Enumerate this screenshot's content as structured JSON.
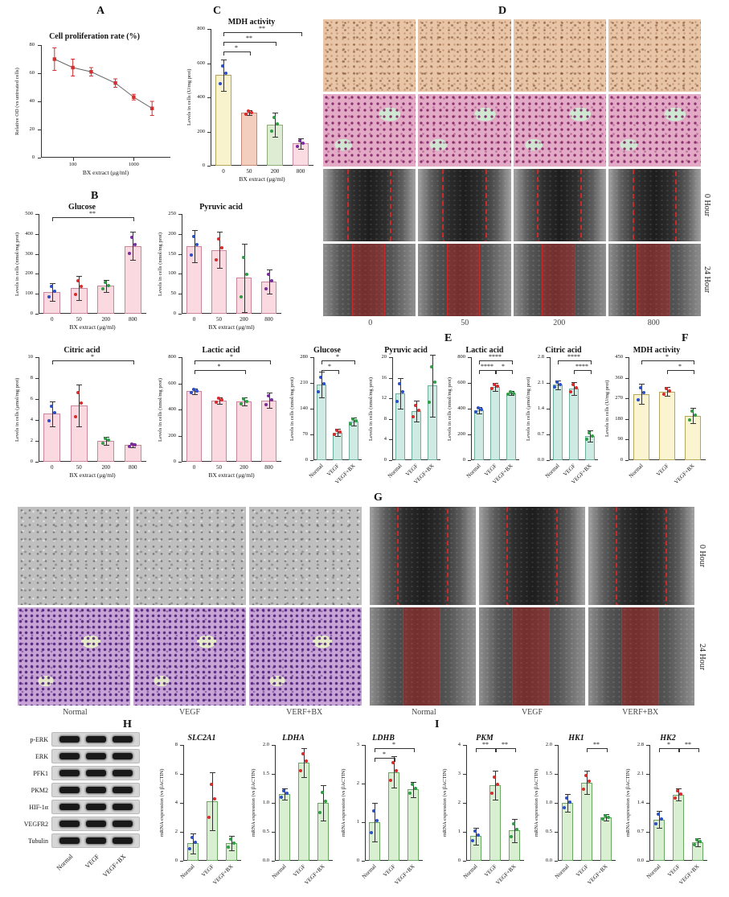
{
  "panels": {
    "A": "A",
    "B": "B",
    "C": "C",
    "D": "D",
    "E": "E",
    "F": "F",
    "G": "G",
    "H": "H",
    "I": "I"
  },
  "panelD": {
    "col_labels": [
      "0",
      "50",
      "200",
      "800"
    ],
    "row_labels": [
      "0 Hour",
      "24 Hour"
    ]
  },
  "panelG": {
    "col_labels": [
      "Normal",
      "VEGF",
      "VERF+BX"
    ],
    "row_labels": [
      "0 Hour",
      "24 Hour"
    ]
  },
  "western": {
    "proteins": [
      "p-ERK",
      "ERK",
      "PFK1",
      "PKM2",
      "HIF-1α",
      "VEGFR2",
      "Tubulin"
    ],
    "lanes": [
      "Normal",
      "VEGF",
      "VEGF+BX"
    ]
  },
  "chart_data": [
    {
      "id": "A_proliferation",
      "type": "line",
      "title": "Cell proliferation rate (%)",
      "ylabel": "Relative OD (vs untreated cells)",
      "xlabel": "BX extract (μg/ml)",
      "x": [
        50,
        100,
        200,
        500,
        1000,
        2000
      ],
      "y": [
        70,
        64,
        61,
        53,
        43,
        35
      ],
      "errors": [
        8,
        6,
        3,
        3,
        2,
        5
      ],
      "yticks": [
        0,
        20,
        40,
        60,
        80
      ],
      "xtick_labels": [
        "100",
        "1000"
      ],
      "xrange": [
        30,
        4000
      ],
      "point_color": "#d42f2f",
      "line_color": "#666"
    },
    {
      "id": "C_mdh",
      "type": "bar",
      "title": "MDH activity",
      "ylabel": "Levels in cells (U/mg prot)",
      "xlabel": "BX extract (μg/ml)",
      "categories": [
        "0",
        "50",
        "200",
        "800"
      ],
      "values": [
        530,
        310,
        240,
        130
      ],
      "errors": [
        90,
        15,
        70,
        30
      ],
      "yticks": [
        0,
        200,
        400,
        600,
        800
      ],
      "rotate_labels": false,
      "bar": [
        "#f8f2cd",
        "#f3cdbd",
        "#dfecd4",
        "#fbdce3"
      ],
      "bar_border": [
        "#b3a35a",
        "#c08a76",
        "#8fae77",
        "#c98ba0"
      ],
      "dots": [
        "#2a4fc9",
        "#d92b2b",
        "#2e9e44",
        "#7a2ba0"
      ],
      "sig": [
        {
          "a": 0,
          "b": 3,
          "label": "**",
          "row": 0
        },
        {
          "a": 0,
          "b": 2,
          "label": "**",
          "row": 1
        },
        {
          "a": 0,
          "b": 1,
          "label": "*",
          "row": 2
        }
      ]
    },
    {
      "id": "B_glucose",
      "type": "bar",
      "title": "Glucose",
      "ylabel": "Levels in cells (nmol/mg prot)",
      "xlabel": "BX extract (μg/ml)",
      "categories": [
        "0",
        "50",
        "200",
        "800"
      ],
      "values": [
        110,
        130,
        140,
        340
      ],
      "errors": [
        45,
        60,
        30,
        70
      ],
      "yticks": [
        0,
        100,
        200,
        300,
        400,
        500
      ],
      "rotate_labels": false,
      "bar": "#fbd9e0",
      "bar_border": "#c9859a",
      "dots": [
        "#2a4fc9",
        "#d92b2b",
        "#2e9e44",
        "#7a2ba0"
      ],
      "sig": [
        {
          "a": 0,
          "b": 3,
          "label": "**",
          "row": 0
        }
      ]
    },
    {
      "id": "B_pyruvic",
      "type": "bar",
      "title": "Pyruvic acid",
      "ylabel": "Levels in cells (nmol/mg prot)",
      "xlabel": "BX extract (μg/ml)",
      "categories": [
        "0",
        "50",
        "200",
        "800"
      ],
      "values": [
        170,
        160,
        90,
        80
      ],
      "errors": [
        40,
        45,
        85,
        30
      ],
      "yticks": [
        0,
        50,
        100,
        150,
        200,
        250
      ],
      "rotate_labels": false,
      "bar": "#fbd9e0",
      "bar_border": "#c9859a",
      "dots": [
        "#2a4fc9",
        "#d92b2b",
        "#2e9e44",
        "#7a2ba0"
      ],
      "sig": []
    },
    {
      "id": "B_citric",
      "type": "bar",
      "title": "Citric acid",
      "ylabel": "Levels in cells (μmol/mg prot)",
      "xlabel": "BX extract (μg/ml)",
      "categories": [
        "0",
        "50",
        "200",
        "800"
      ],
      "values": [
        4.6,
        5.4,
        2.0,
        1.6
      ],
      "errors": [
        1.2,
        2.0,
        0.4,
        0.2
      ],
      "yticks": [
        0,
        2,
        4,
        6,
        8,
        10
      ],
      "rotate_labels": false,
      "bar": "#fbd9e0",
      "bar_border": "#c9859a",
      "dots": [
        "#2a4fc9",
        "#d92b2b",
        "#2e9e44",
        "#7a2ba0"
      ],
      "sig": [
        {
          "a": 0,
          "b": 3,
          "label": "*",
          "row": 0
        }
      ]
    },
    {
      "id": "B_lactic",
      "type": "bar",
      "title": "Lactic acid",
      "ylabel": "Levels in cells (nmol/mg prot)",
      "xlabel": "BX extract (μg/ml)",
      "categories": [
        "0",
        "50",
        "200",
        "800"
      ],
      "values": [
        540,
        470,
        460,
        470
      ],
      "errors": [
        20,
        25,
        30,
        60
      ],
      "yticks": [
        0,
        200,
        400,
        600,
        800
      ],
      "rotate_labels": false,
      "bar": "#fbd9e0",
      "bar_border": "#c9859a",
      "dots": [
        "#2a4fc9",
        "#d92b2b",
        "#2e9e44",
        "#7a2ba0"
      ],
      "sig": [
        {
          "a": 0,
          "b": 3,
          "label": "*",
          "row": 0
        },
        {
          "a": 0,
          "b": 2,
          "label": "*",
          "row": 1
        }
      ]
    },
    {
      "id": "E_glucose",
      "type": "bar",
      "title": "Glucose",
      "ylabel": "Levels in cells (nmol/mg prot)",
      "categories": [
        "Normal",
        "VEGF",
        "VEGF+BX"
      ],
      "values": [
        205,
        75,
        105
      ],
      "errors": [
        35,
        10,
        12
      ],
      "yticks": [
        0,
        70,
        140,
        210,
        280
      ],
      "rotate_labels": true,
      "bar": "#cfeae2",
      "bar_border": "#6fae9c",
      "dots": [
        "#2a4fc9",
        "#d92b2b",
        "#2e9e44"
      ],
      "sig": [
        {
          "a": 0,
          "b": 2,
          "label": "*",
          "row": 0
        },
        {
          "a": 0,
          "b": 1,
          "label": "*",
          "row": 1
        }
      ]
    },
    {
      "id": "E_pyruvic",
      "type": "bar",
      "title": "Pyruvic acid",
      "ylabel": "Levels in cells (nmol/mg prot)",
      "categories": [
        "Normal",
        "VEGF",
        "VEGF+BX"
      ],
      "values": [
        13,
        9.5,
        14.5
      ],
      "errors": [
        3,
        2,
        6
      ],
      "yticks": [
        0,
        4,
        8,
        12,
        16,
        20
      ],
      "rotate_labels": true,
      "bar": "#cfeae2",
      "bar_border": "#6fae9c",
      "dots": [
        "#2a4fc9",
        "#d92b2b",
        "#2e9e44"
      ],
      "sig": []
    },
    {
      "id": "E_lactic",
      "type": "bar",
      "title": "Lactic acid",
      "ylabel": "Levels in cells (nmol/mg prot)",
      "categories": [
        "Normal",
        "VEGF",
        "VEGF+BX"
      ],
      "values": [
        390,
        570,
        520
      ],
      "errors": [
        25,
        30,
        15
      ],
      "yticks": [
        0,
        200,
        400,
        600,
        800
      ],
      "rotate_labels": true,
      "bar": "#cfeae2",
      "bar_border": "#6fae9c",
      "dots": [
        "#2a4fc9",
        "#d92b2b",
        "#2e9e44"
      ],
      "sig": [
        {
          "a": 0,
          "b": 2,
          "label": "****",
          "row": 0
        },
        {
          "a": 0,
          "b": 1,
          "label": "****",
          "row": 1
        },
        {
          "a": 1,
          "b": 2,
          "label": "*",
          "row": 1
        }
      ]
    },
    {
      "id": "E_citric",
      "type": "bar",
      "title": "Citric acid",
      "ylabel": "Levels in cells (μmol/mg prot)",
      "categories": [
        "Normal",
        "VEGF",
        "VEGF+BX"
      ],
      "values": [
        2.05,
        1.95,
        0.65
      ],
      "errors": [
        0.12,
        0.18,
        0.15
      ],
      "yticks": [
        "0.0",
        "0.7",
        "1.4",
        "2.1",
        "2.8"
      ],
      "rotate_labels": true,
      "bar": "#cfeae2",
      "bar_border": "#6fae9c",
      "dots": [
        "#2a4fc9",
        "#d92b2b",
        "#2e9e44"
      ],
      "sig": [
        {
          "a": 0,
          "b": 2,
          "label": "****",
          "row": 0
        },
        {
          "a": 1,
          "b": 2,
          "label": "****",
          "row": 1
        }
      ]
    },
    {
      "id": "F_mdh",
      "type": "bar",
      "title": "MDH activity",
      "ylabel": "Levels in cells (U/mg prot)",
      "categories": [
        "Normal",
        "VEGF",
        "VEGF+BX"
      ],
      "values": [
        290,
        300,
        195
      ],
      "errors": [
        45,
        20,
        35
      ],
      "yticks": [
        0,
        90,
        180,
        270,
        360,
        450
      ],
      "rotate_labels": true,
      "bar": "#faf4d0",
      "bar_border": "#b5a55e",
      "dots": [
        "#2a4fc9",
        "#d92b2b",
        "#2e9e44"
      ],
      "sig": [
        {
          "a": 0,
          "b": 2,
          "label": "*",
          "row": 0
        },
        {
          "a": 1,
          "b": 2,
          "label": "*",
          "row": 1
        }
      ]
    },
    {
      "id": "H_slc2a1",
      "type": "bar",
      "title": "SLC2A1",
      "italic": true,
      "ylabel": "mRNA expression (vs βACTIN)",
      "categories": [
        "Normal",
        "VEGF",
        "VEGF+BX"
      ],
      "values": [
        1.2,
        4.1,
        1.2
      ],
      "errors": [
        0.7,
        2.0,
        0.5
      ],
      "yticks": [
        0,
        2,
        4,
        6,
        8
      ],
      "rotate_labels": true,
      "bar": "#d8efd2",
      "bar_border": "#6aa763",
      "dots": [
        "#2a4fc9",
        "#d92b2b",
        "#2e9e44"
      ],
      "sig": []
    },
    {
      "id": "H_ldha",
      "type": "bar",
      "title": "LDHA",
      "italic": true,
      "ylabel": "mRNA expression (vs βACTIN)",
      "categories": [
        "Normal",
        "VEGF",
        "VEGF+BX"
      ],
      "values": [
        1.15,
        1.7,
        1.0
      ],
      "errors": [
        0.1,
        0.25,
        0.3
      ],
      "yticks": [
        "0.0",
        "0.5",
        "1.0",
        "1.5",
        "2.0"
      ],
      "rotate_labels": true,
      "bar": "#d8efd2",
      "bar_border": "#6aa763",
      "dots": [
        "#2a4fc9",
        "#d92b2b",
        "#2e9e44"
      ],
      "sig": []
    },
    {
      "id": "H_ldhb",
      "type": "bar",
      "title": "LDHB",
      "italic": true,
      "ylabel": "mRNA expression (vs βACTIN)",
      "categories": [
        "Normal",
        "VEGF",
        "VEGF+BX"
      ],
      "values": [
        1.0,
        2.3,
        1.85
      ],
      "errors": [
        0.5,
        0.4,
        0.2
      ],
      "yticks": [
        0,
        1,
        2,
        3
      ],
      "rotate_labels": true,
      "bar": "#d8efd2",
      "bar_border": "#6aa763",
      "dots": [
        "#2a4fc9",
        "#d92b2b",
        "#2e9e44"
      ],
      "sig": [
        {
          "a": 0,
          "b": 2,
          "label": "*",
          "row": 0
        },
        {
          "a": 0,
          "b": 1,
          "label": "*",
          "row": 1
        }
      ]
    },
    {
      "id": "I_pkm",
      "type": "bar",
      "title": "PKM",
      "italic": true,
      "ylabel": "mRNA expression (vs βACTIN)",
      "categories": [
        "Normal",
        "VEGF",
        "VEGF+BX"
      ],
      "values": [
        0.85,
        2.6,
        1.05
      ],
      "errors": [
        0.3,
        0.5,
        0.4
      ],
      "yticks": [
        0,
        1,
        2,
        3,
        4
      ],
      "rotate_labels": true,
      "bar": "#d8efd2",
      "bar_border": "#6aa763",
      "dots": [
        "#2a4fc9",
        "#d92b2b",
        "#2e9e44"
      ],
      "sig": [
        {
          "a": 0,
          "b": 1,
          "label": "**",
          "row": 0
        },
        {
          "a": 1,
          "b": 2,
          "label": "**",
          "row": 0
        }
      ]
    },
    {
      "id": "I_hk1",
      "type": "bar",
      "title": "HK1",
      "italic": true,
      "ylabel": "mRNA expression (vs βACTIN)",
      "categories": [
        "Normal",
        "VEGF",
        "VEGF+BX"
      ],
      "values": [
        1.0,
        1.35,
        0.75
      ],
      "errors": [
        0.15,
        0.2,
        0.05
      ],
      "yticks": [
        "0.0",
        "0.5",
        "1.0",
        "1.5",
        "2.0"
      ],
      "rotate_labels": true,
      "bar": "#d8efd2",
      "bar_border": "#6aa763",
      "dots": [
        "#2a4fc9",
        "#d92b2b",
        "#2e9e44"
      ],
      "sig": [
        {
          "a": 1,
          "b": 2,
          "label": "**",
          "row": 0
        }
      ]
    },
    {
      "id": "I_hk2",
      "type": "bar",
      "title": "HK2",
      "italic": true,
      "ylabel": "mRNA expression (vs βACTIN)",
      "categories": [
        "Normal",
        "VEGF",
        "VEGF+BX"
      ],
      "values": [
        1.0,
        1.6,
        0.45
      ],
      "errors": [
        0.2,
        0.15,
        0.1
      ],
      "yticks": [
        "0.0",
        "0.7",
        "1.4",
        "2.1",
        "2.8"
      ],
      "rotate_labels": true,
      "bar": "#d8efd2",
      "bar_border": "#6aa763",
      "dots": [
        "#2a4fc9",
        "#d92b2b",
        "#2e9e44"
      ],
      "sig": [
        {
          "a": 0,
          "b": 1,
          "label": "*",
          "row": 0
        },
        {
          "a": 1,
          "b": 2,
          "label": "**",
          "row": 0
        }
      ]
    }
  ]
}
